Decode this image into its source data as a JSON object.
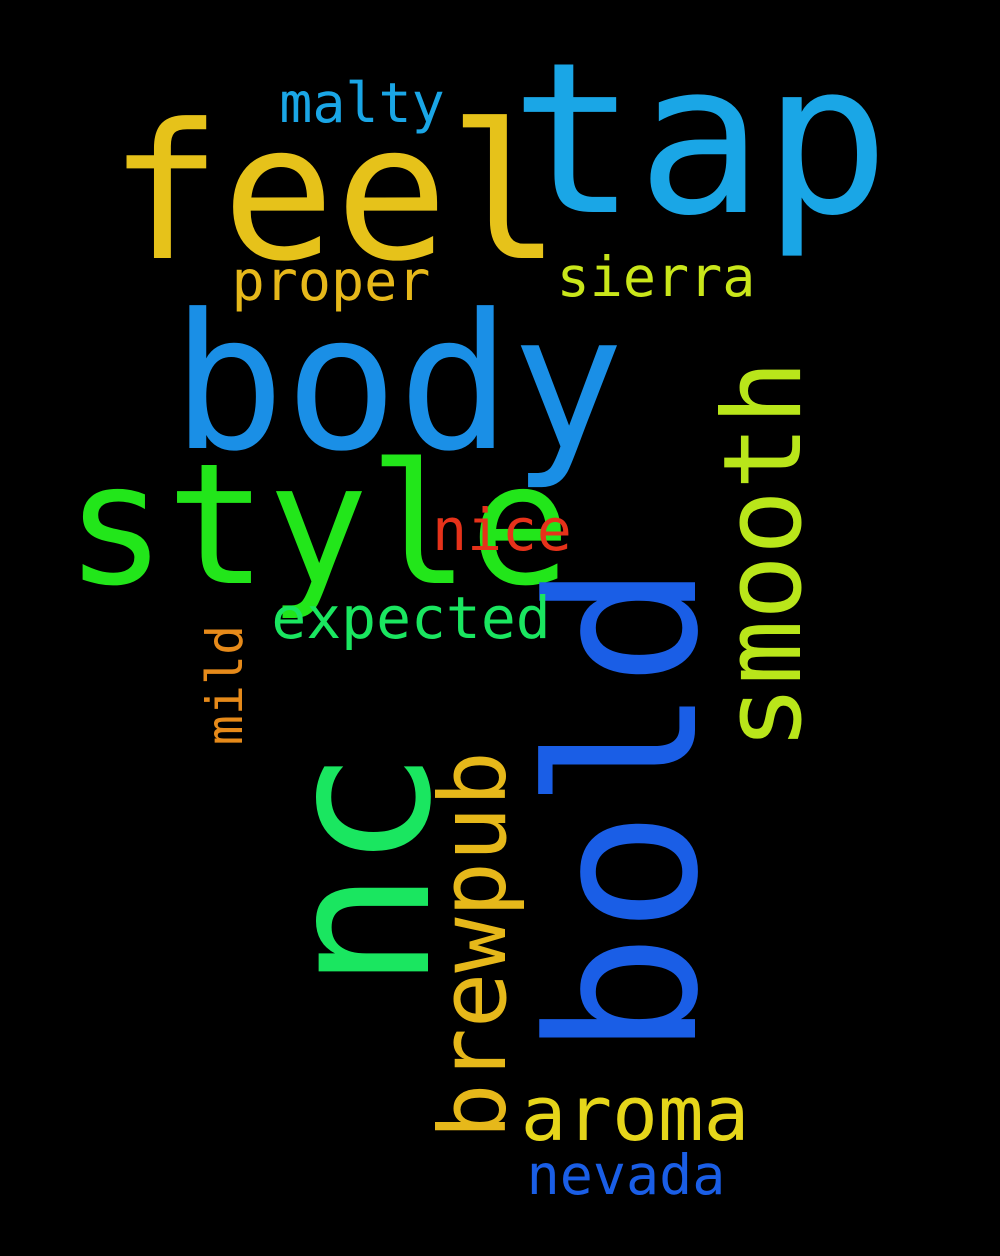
{
  "background": "#000000",
  "words": [
    {
      "text": "tap",
      "color": "#1aa6e6",
      "weight": 100
    },
    {
      "text": "feel",
      "color": "#e6c21a",
      "weight": 92
    },
    {
      "text": "body",
      "color": "#1a8fe6",
      "weight": 90
    },
    {
      "text": "style",
      "color": "#22e61a",
      "weight": 100
    },
    {
      "text": "bold",
      "color": "#1a5ee6",
      "weight": 97
    },
    {
      "text": "nc",
      "color": "#1ae660",
      "weight": 88
    },
    {
      "text": "smooth",
      "color": "#b9e61a",
      "weight": 55
    },
    {
      "text": "brewpub",
      "color": "#e6b81a",
      "weight": 46
    },
    {
      "text": "aroma",
      "color": "#e6d61a",
      "weight": 36
    },
    {
      "text": "expected",
      "color": "#1ae660",
      "weight": 28
    },
    {
      "text": "nice",
      "color": "#e6321a",
      "weight": 28
    },
    {
      "text": "sierra",
      "color": "#c9e61a",
      "weight": 26
    },
    {
      "text": "proper",
      "color": "#e6b81a",
      "weight": 26
    },
    {
      "text": "malty",
      "color": "#1aa6e6",
      "weight": 25
    },
    {
      "text": "nevada",
      "color": "#1a5ee6",
      "weight": 25
    },
    {
      "text": "mild",
      "color": "#e68a1a",
      "weight": 22
    }
  ]
}
